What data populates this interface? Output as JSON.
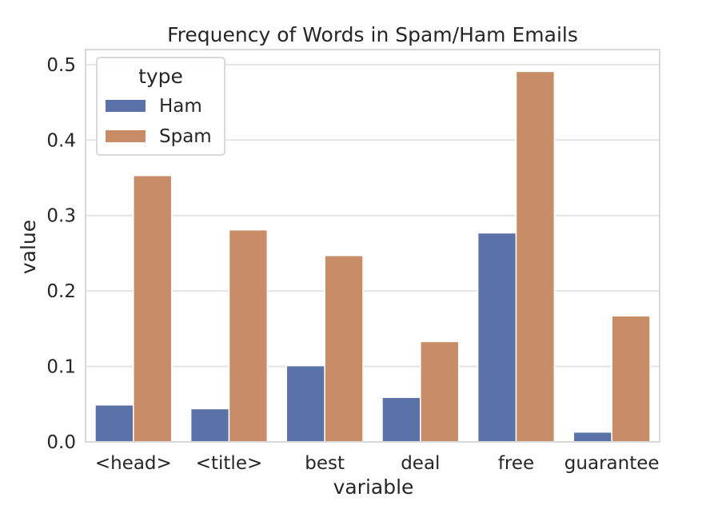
{
  "chart_data": {
    "type": "bar",
    "title": "Frequency of Words in Spam/Ham Emails",
    "xlabel": "variable",
    "ylabel": "value",
    "categories": [
      "<head>",
      "<title>",
      "best",
      "deal",
      "free",
      "guarantee"
    ],
    "series": [
      {
        "name": "Ham",
        "color": "#5b72a8",
        "values": [
          0.049,
          0.044,
          0.101,
          0.059,
          0.277,
          0.013
        ]
      },
      {
        "name": "Spam",
        "color": "#c88d67",
        "values": [
          0.353,
          0.281,
          0.247,
          0.133,
          0.491,
          0.167
        ]
      }
    ],
    "ylim": [
      0,
      0.52
    ],
    "yticks": [
      "0.0",
      "0.1",
      "0.2",
      "0.3",
      "0.4",
      "0.5"
    ],
    "grid": true,
    "legend": {
      "title": "type",
      "placement": "top-left"
    }
  }
}
